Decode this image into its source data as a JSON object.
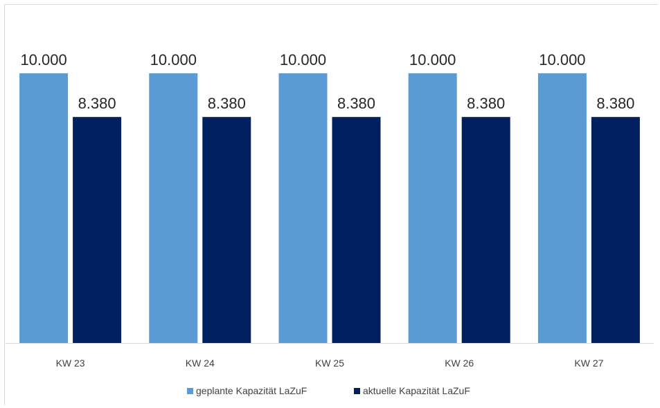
{
  "chart_data": {
    "type": "bar",
    "title": "",
    "xlabel": "",
    "ylabel": "",
    "categories": [
      "KW 23",
      "KW 24",
      "KW 25",
      "KW 26",
      "KW 27"
    ],
    "series": [
      {
        "name": "geplante Kapazität LaZuF",
        "color": "#5b9bd5",
        "values": [
          10000,
          10000,
          10000,
          10000,
          10000
        ],
        "labels": [
          "10.000",
          "10.000",
          "10.000",
          "10.000",
          "10.000"
        ]
      },
      {
        "name": "aktuelle Kapazität LaZuF",
        "color": "#002060",
        "values": [
          8380,
          8380,
          8380,
          8380,
          8380
        ],
        "labels": [
          "8.380",
          "8.380",
          "8.380",
          "8.380",
          "8.380"
        ]
      }
    ],
    "ylim": [
      0,
      10000
    ],
    "grid": false,
    "legend_position": "bottom",
    "axis_color": "#d9d9d9"
  }
}
